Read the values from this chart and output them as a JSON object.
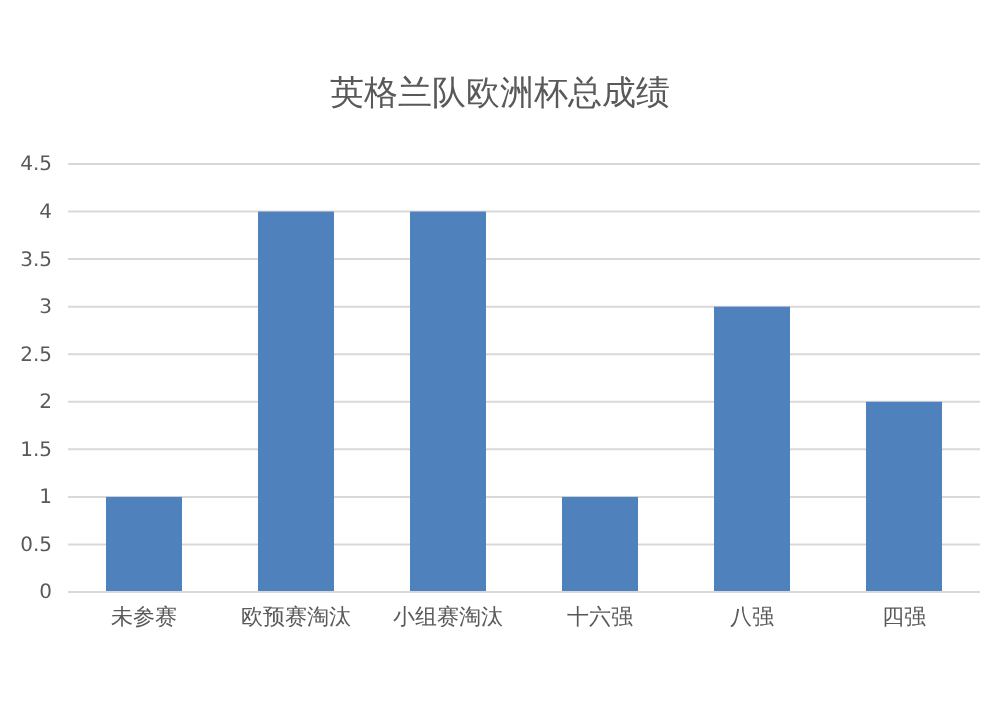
{
  "chart_data": {
    "type": "bar",
    "title": "英格兰队欧洲杯总成绩",
    "categories": [
      "未参赛",
      "欧预赛淘汰",
      "小组赛淘汰",
      "十六强",
      "八强",
      "四强"
    ],
    "values": [
      1,
      4,
      4,
      1,
      3,
      2
    ],
    "color": "#4f81bd",
    "ylim": [
      0,
      4.5
    ],
    "yticks": [
      0,
      0.5,
      1,
      1.5,
      2,
      2.5,
      3,
      3.5,
      4,
      4.5
    ],
    "grid": "y"
  }
}
